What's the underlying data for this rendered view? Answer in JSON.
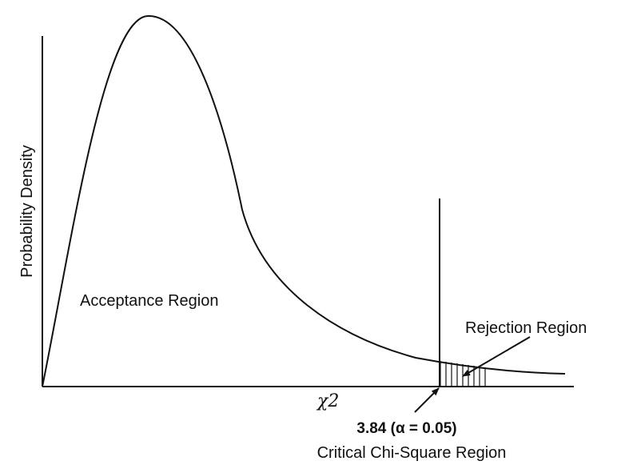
{
  "labels": {
    "ylabel": "Probability Density",
    "acceptance": "Acceptance Region",
    "rejection": "Rejection Region",
    "xsymbol": "χ2",
    "critical_value": "3.84 (α = 0.05)",
    "critical_caption": "Critical Chi-Square Region"
  },
  "colors": {
    "line": "#111111",
    "background": "#ffffff"
  }
}
